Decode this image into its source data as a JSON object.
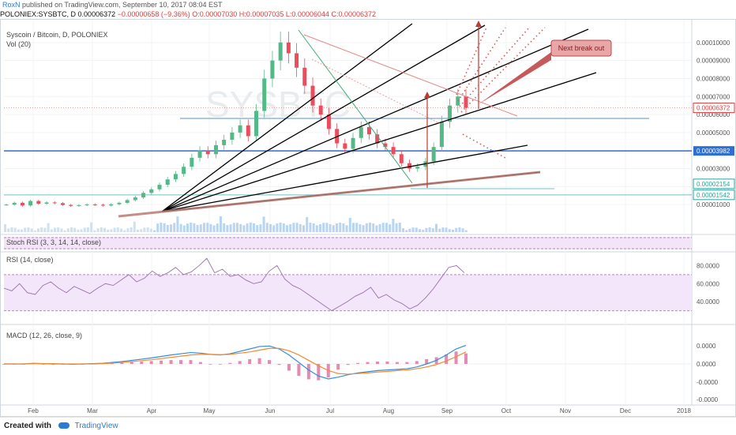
{
  "header": {
    "author": "RoxN",
    "published": "published on TradingView.com, September 10, 2017 08:04 EST",
    "symbol": "POLONIEX:SYSBTC, D",
    "open_price": "0.00006372",
    "change": "−0.00000658 (−9.36%)",
    "o": "O:0.00007030",
    "h": "H:0.00007035",
    "l": "L:0.00006044",
    "c": "C:0.00006372"
  },
  "colors": {
    "up": "#53b987",
    "down": "#eb4d5c",
    "blue_line": "#2e6fd6",
    "fan": "#000000",
    "trend": "#b97a74",
    "rsi_fill": "#f3e6fb",
    "annotation": "#c0392b"
  },
  "chart_data": [
    {
      "type": "candlestick",
      "title": "Syscoin / Bitcoin, D, POLONIEX",
      "sub_label": "Vol (20)",
      "watermark": "SYSBTC",
      "x_ticks": [
        "Feb",
        "Mar",
        "Apr",
        "May",
        "Jun",
        "Jul",
        "Aug",
        "Sep",
        "Oct",
        "Nov",
        "Dec",
        "2018"
      ],
      "y_ticks": [
        "0.00010000",
        "0.00009000",
        "0.00008000",
        "0.00007000",
        "0.00006000",
        "0.00005000",
        "0.00004000",
        "0.00003000",
        "0.00002000",
        "0.00001000"
      ],
      "ylim": [
        0.0,
        0.00011
      ],
      "price_labels": [
        {
          "value": 6.372e-05,
          "text": "0.00006372",
          "color": "#e03a3a",
          "style": "outline"
        },
        {
          "value": 3.982e-05,
          "text": "0.00003982",
          "color": "#2e6fd6",
          "style": "filled"
        },
        {
          "value": 2.154e-05,
          "text": "0.00002154",
          "color": "#26a69a",
          "style": "outline"
        },
        {
          "value": 1.542e-05,
          "text": "0.00001542",
          "color": "#26a69a",
          "style": "outline"
        }
      ],
      "close_series": [
        1e-05,
        1.1e-05,
        9.5e-06,
        1.2e-05,
        1.05e-05,
        1.12e-05,
        1.08e-05,
        9.8e-06,
        9.3e-06,
        9.7e-06,
        1.01e-05,
        9.9e-06,
        9.5e-06,
        1.02e-05,
        1.1e-05,
        1.25e-05,
        1.4e-05,
        1.65e-05,
        1.85e-05,
        2.1e-05,
        2.4e-05,
        2.7e-05,
        3.1e-05,
        3.6e-05,
        4e-05,
        3.8e-05,
        4.3e-05,
        4.6e-05,
        5e-05,
        5.4e-05,
        4.8e-05,
        6.2e-05,
        8e-05,
        9e-05,
        0.0001,
        9.4e-05,
        8.6e-05,
        7.6e-05,
        6.5e-05,
        6e-05,
        5.2e-05,
        4.4e-05,
        4.1e-05,
        4.7e-05,
        5.3e-05,
        4.9e-05,
        4.4e-05,
        4.2e-05,
        3.8e-05,
        3.3e-05,
        3e-05,
        3.1e-05,
        3.4e-05,
        4.2e-05,
        5.6e-05,
        6.5e-05,
        7e-05,
        6.37e-05
      ],
      "annotation": "Next break out"
    },
    {
      "type": "line",
      "title": "Stoch RSI (3, 3, 14, 14, close)"
    },
    {
      "type": "line",
      "title": "RSI (14, close)",
      "y_ticks": [
        "80.0000",
        "60.0000",
        "40.0000"
      ],
      "ylim": [
        20,
        90
      ],
      "band": [
        30,
        70
      ],
      "values": [
        55,
        52,
        60,
        50,
        48,
        58,
        62,
        55,
        50,
        57,
        53,
        49,
        55,
        60,
        58,
        64,
        70,
        62,
        66,
        74,
        68,
        72,
        78,
        70,
        73,
        80,
        88,
        72,
        76,
        68,
        70,
        64,
        60,
        62,
        74,
        80,
        65,
        58,
        54,
        48,
        42,
        36,
        30,
        35,
        40,
        46,
        50,
        56,
        44,
        48,
        42,
        38,
        32,
        36,
        44,
        54,
        66,
        78,
        80,
        72
      ]
    },
    {
      "type": "line",
      "title": "MACD (12, 26, close, 9)",
      "y_ticks": [
        "0.0000",
        "0.0000",
        "0.0000",
        "-0.0000",
        "-0.0000"
      ],
      "series": [
        {
          "values": [
            0,
            0,
            0,
            0.02,
            0.01,
            0,
            0,
            -0.01,
            0,
            0.01,
            0.02,
            0.05,
            0.08,
            0.12,
            0.16,
            0.2,
            0.25,
            0.3,
            0.34,
            0.38,
            0.36,
            0.32,
            0.3,
            0.34,
            0.42,
            0.5,
            0.58,
            0.6,
            0.5,
            0.3,
            0.05,
            -0.2,
            -0.4,
            -0.5,
            -0.44,
            -0.36,
            -0.3,
            -0.26,
            -0.22,
            -0.2,
            -0.18,
            -0.16,
            -0.1,
            0,
            0.12,
            0.3,
            0.5,
            0.62
          ]
        },
        {
          "values": [
            0,
            0,
            0,
            0.01,
            0.01,
            0.01,
            0,
            0,
            0,
            0,
            0.01,
            0.03,
            0.05,
            0.08,
            0.11,
            0.14,
            0.18,
            0.22,
            0.26,
            0.3,
            0.32,
            0.32,
            0.31,
            0.32,
            0.36,
            0.4,
            0.46,
            0.52,
            0.52,
            0.44,
            0.3,
            0.12,
            -0.06,
            -0.22,
            -0.32,
            -0.34,
            -0.32,
            -0.3,
            -0.27,
            -0.25,
            -0.22,
            -0.2,
            -0.16,
            -0.1,
            -0.02,
            0.1,
            0.24,
            0.4
          ]
        }
      ]
    }
  ],
  "footer": {
    "created": "Created with",
    "brand": "TradingView"
  }
}
